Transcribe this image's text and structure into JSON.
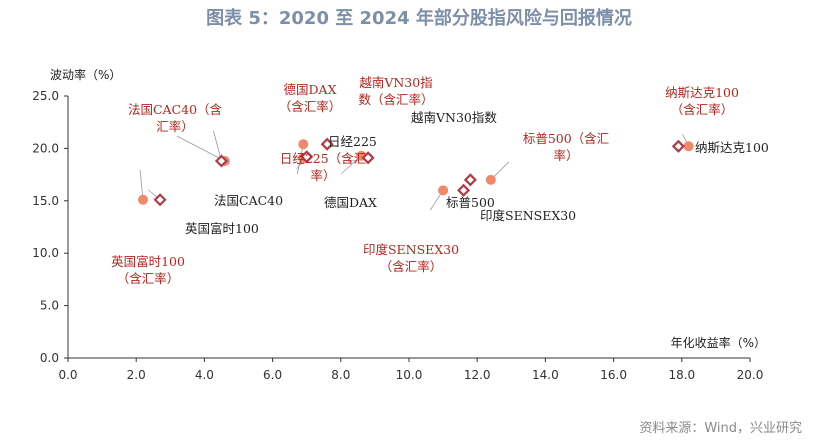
{
  "header": {
    "title": "图表 5：2020 至 2024 年部分股指风险与回报情况"
  },
  "footer": {
    "source": "资料来源：Wind，兴业研究"
  },
  "chart_data": {
    "type": "scatter",
    "xlabel": "年化收益率（%）",
    "ylabel": "波动率（%）",
    "xlim": [
      0,
      20
    ],
    "ylim": [
      0,
      25
    ],
    "xticks": [
      "0.0",
      "2.0",
      "4.0",
      "6.0",
      "8.0",
      "10.0",
      "12.0",
      "14.0",
      "16.0",
      "18.0",
      "20.0"
    ],
    "yticks": [
      "0.0",
      "5.0",
      "10.0",
      "15.0",
      "20.0",
      "25.0"
    ],
    "grid": false,
    "colors": {
      "fx": "#f0886a",
      "local": "#b03a48",
      "fx_label": "#b3261e",
      "local_label": "#222222"
    },
    "series": [
      {
        "group": "fx",
        "points": [
          {
            "label": "纳斯达克100（含汇率）",
            "x": 18.2,
            "y": 20.2
          },
          {
            "label": "标普500（含汇率）",
            "x": 12.4,
            "y": 17.0
          },
          {
            "label": "印度SENSEX30（含汇率）",
            "x": 11.0,
            "y": 16.0
          },
          {
            "label": "越南VN30指数（含汇率）",
            "x": 8.6,
            "y": 19.3
          },
          {
            "label": "日经225（含汇率）",
            "x": 6.9,
            "y": 19.1
          },
          {
            "label": "德国DAX（含汇率）",
            "x": 6.9,
            "y": 20.4
          },
          {
            "label": "法国CAC40（含汇率）",
            "x": 4.6,
            "y": 18.8
          },
          {
            "label": "英国富时100（含汇率）",
            "x": 2.2,
            "y": 15.1
          }
        ]
      },
      {
        "group": "local",
        "points": [
          {
            "label": "纳斯达克100",
            "x": 17.9,
            "y": 20.2
          },
          {
            "label": "标普500",
            "x": 11.6,
            "y": 16.0
          },
          {
            "label": "印度SENSEX30",
            "x": 11.8,
            "y": 17.0
          },
          {
            "label": "越南VN30指数",
            "x": 8.8,
            "y": 19.1
          },
          {
            "label": "日经225",
            "x": 7.6,
            "y": 20.4
          },
          {
            "label": "德国DAX",
            "x": 7.0,
            "y": 19.2
          },
          {
            "label": "法国CAC40",
            "x": 4.5,
            "y": 18.8
          },
          {
            "label": "英国富时100",
            "x": 2.7,
            "y": 15.1
          }
        ]
      }
    ],
    "annotations": [
      {
        "lines": [
          "纳斯达克100",
          "（含汇率）"
        ],
        "group": "fx"
      },
      {
        "lines": [
          "纳斯达克100"
        ],
        "group": "local"
      },
      {
        "lines": [
          "标普500（含汇",
          "率）"
        ],
        "group": "fx"
      },
      {
        "lines": [
          "标普500"
        ],
        "group": "local"
      },
      {
        "lines": [
          "印度SENSEX30",
          "（含汇率）"
        ],
        "group": "fx"
      },
      {
        "lines": [
          "印度SENSEX30"
        ],
        "group": "local"
      },
      {
        "lines": [
          "越南VN30指",
          "数（含汇率）"
        ],
        "group": "fx"
      },
      {
        "lines": [
          "越南VN30指数"
        ],
        "group": "local"
      },
      {
        "lines": [
          "日经225（含汇",
          "率）"
        ],
        "group": "fx"
      },
      {
        "lines": [
          "日经225"
        ],
        "group": "local"
      },
      {
        "lines": [
          "德国DAX",
          "（含汇率）"
        ],
        "group": "fx"
      },
      {
        "lines": [
          "德国DAX"
        ],
        "group": "local"
      },
      {
        "lines": [
          "法国CAC40（含",
          "汇率）"
        ],
        "group": "fx"
      },
      {
        "lines": [
          "法国CAC40"
        ],
        "group": "local"
      },
      {
        "lines": [
          "英国富时100",
          "（含汇率）"
        ],
        "group": "fx"
      },
      {
        "lines": [
          "英国富时100"
        ],
        "group": "local"
      }
    ]
  }
}
